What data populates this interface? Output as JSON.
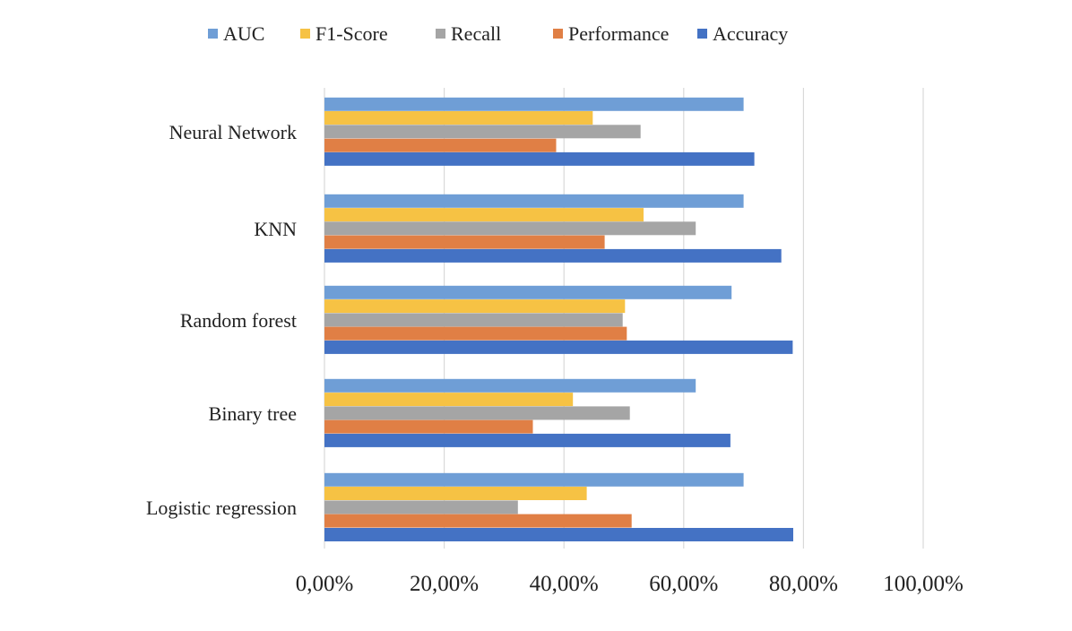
{
  "chart_data": {
    "type": "bar",
    "orientation": "horizontal",
    "categories": [
      "Neural Network",
      "KNN",
      "Random forest",
      "Binary tree",
      "Logistic regression"
    ],
    "series": [
      {
        "name": "AUC",
        "color": "#6F9ED6",
        "values": [
          70.0,
          70.0,
          68.0,
          62.0,
          70.0
        ]
      },
      {
        "name": "F1-Score",
        "color": "#F6C244",
        "values": [
          44.8,
          53.3,
          50.2,
          41.5,
          43.8
        ]
      },
      {
        "name": "Recall",
        "color": "#A5A5A5",
        "values": [
          52.8,
          62.0,
          49.8,
          51.0,
          32.3
        ]
      },
      {
        "name": "Performance",
        "color": "#E07F45",
        "values": [
          38.7,
          46.8,
          50.5,
          34.8,
          51.3
        ]
      },
      {
        "name": "Accuracy",
        "color": "#4472C4",
        "values": [
          71.8,
          76.3,
          78.2,
          67.8,
          78.3
        ]
      }
    ],
    "xlim": [
      0,
      100
    ],
    "xticks": [
      0,
      20,
      40,
      60,
      80,
      100
    ],
    "xtick_labels": [
      "0,00%",
      "20,00%",
      "40,00%",
      "60,00%",
      "80,00%",
      "100,00%"
    ],
    "value_unit": "percent",
    "grid": "vertical",
    "legend": "top",
    "legend_order": [
      "AUC",
      "F1-Score",
      "Recall",
      "Performance",
      "Accuracy"
    ]
  }
}
